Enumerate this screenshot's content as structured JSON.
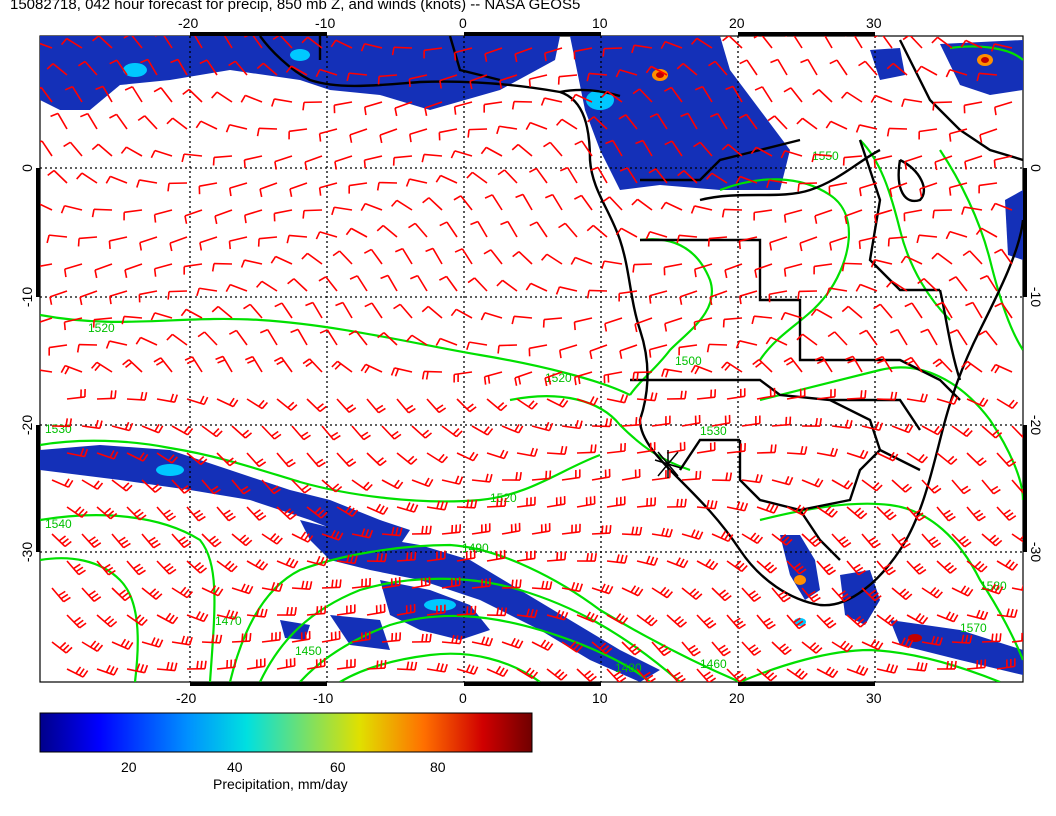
{
  "title": "15082718, 042 hour forecast for precip, 850 mb Z, and winds (knots) -- NASA GEOS5",
  "map": {
    "lon_ticks": [
      "-20",
      "-10",
      "0",
      "10",
      "20",
      "30"
    ],
    "lat_ticks": [
      "0",
      "-10",
      "-20",
      "-30"
    ],
    "contour_labels": [
      "1520",
      "1530",
      "1520",
      "1520",
      "1540",
      "1500",
      "1550",
      "1490",
      "1470",
      "1450",
      "1480",
      "1460",
      "1570",
      "1580",
      "1530"
    ],
    "colors": {
      "coast": "#000000",
      "contour": "#00e000",
      "barb": "#ff0000",
      "grid": "#000000"
    }
  },
  "colorbar": {
    "ticks": [
      "20",
      "40",
      "60",
      "80"
    ],
    "label": "Precipitation, mm/day"
  }
}
